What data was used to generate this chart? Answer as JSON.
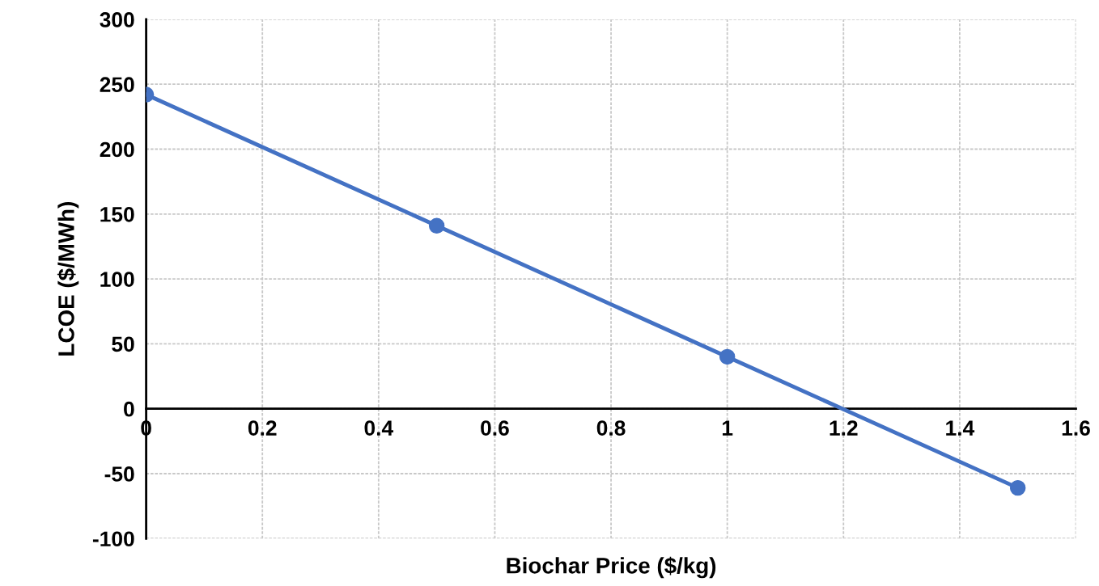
{
  "chart_data": {
    "type": "line",
    "xlabel": "Biochar Price ($/kg)",
    "ylabel": "LCOE ($/MWh)",
    "x": [
      0,
      0.5,
      1,
      1.5
    ],
    "series": [
      {
        "color": "#4472c4",
        "values": [
          242,
          141,
          40,
          -61
        ]
      }
    ],
    "xlim": [
      0,
      1.6
    ],
    "xticks": [
      0,
      0.2,
      0.4,
      0.6,
      0.8,
      1,
      1.2,
      1.4,
      1.6
    ],
    "ylim": [
      -100,
      300
    ],
    "yticks": [
      -100,
      -50,
      0,
      50,
      100,
      150,
      200,
      250,
      300
    ],
    "grid": true,
    "marker": "circle",
    "line_style": "solid"
  }
}
